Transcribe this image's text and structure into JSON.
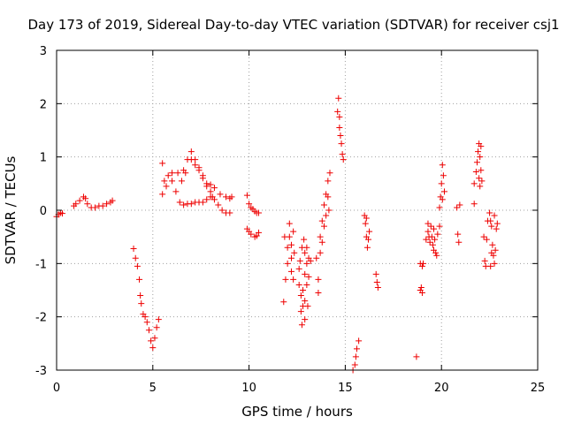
{
  "chart_data": {
    "type": "scatter",
    "title": "Day 173 of 2019, Sidereal Day-to-day VTEC variation (SDTVAR) for receiver csj1",
    "xlabel": "GPS time / hours",
    "ylabel": "SDTVAR / TECUs",
    "xlim": [
      0,
      25
    ],
    "ylim": [
      -3,
      3
    ],
    "xticks": [
      "0",
      "5",
      "10",
      "15",
      "20",
      "25"
    ],
    "yticks": [
      "3",
      "2",
      "1",
      "0",
      "-1",
      "-2",
      "-3"
    ],
    "xtick_values": [
      0,
      5,
      10,
      15,
      20,
      25
    ],
    "ytick_values": [
      3,
      2,
      1,
      0,
      -1,
      -2,
      -3
    ],
    "grid": true,
    "marker": "+",
    "color": "#ee0000",
    "segments": [
      {
        "name": "seg-a",
        "points": [
          [
            0.0,
            -0.12
          ],
          [
            0.1,
            -0.08
          ],
          [
            0.2,
            -0.05
          ],
          [
            0.3,
            -0.06
          ]
        ]
      },
      {
        "name": "seg-b",
        "points": [
          [
            0.9,
            0.08
          ],
          [
            1.0,
            0.12
          ],
          [
            1.2,
            0.18
          ],
          [
            1.4,
            0.25
          ],
          [
            1.5,
            0.22
          ],
          [
            1.6,
            0.12
          ],
          [
            1.8,
            0.05
          ],
          [
            2.0,
            0.05
          ],
          [
            2.2,
            0.08
          ],
          [
            2.4,
            0.08
          ],
          [
            2.6,
            0.12
          ],
          [
            2.8,
            0.15
          ],
          [
            2.9,
            0.18
          ]
        ]
      },
      {
        "name": "seg-c",
        "points": [
          [
            4.0,
            -0.72
          ],
          [
            4.1,
            -0.9
          ],
          [
            4.2,
            -1.05
          ],
          [
            4.3,
            -1.3
          ],
          [
            4.35,
            -1.6
          ],
          [
            4.4,
            -1.75
          ],
          [
            4.5,
            -1.95
          ],
          [
            4.6,
            -2.0
          ],
          [
            4.7,
            -2.1
          ],
          [
            4.8,
            -2.25
          ],
          [
            4.9,
            -2.45
          ],
          [
            5.0,
            -2.58
          ],
          [
            5.1,
            -2.4
          ],
          [
            5.2,
            -2.2
          ],
          [
            5.3,
            -2.05
          ]
        ]
      },
      {
        "name": "seg-d",
        "points": [
          [
            5.5,
            0.88
          ],
          [
            5.6,
            0.55
          ],
          [
            5.8,
            0.65
          ],
          [
            6.0,
            0.7
          ],
          [
            6.3,
            0.7
          ],
          [
            6.6,
            0.75
          ],
          [
            6.8,
            0.95
          ],
          [
            7.0,
            1.1
          ],
          [
            7.2,
            0.95
          ],
          [
            7.4,
            0.8
          ],
          [
            7.6,
            0.65
          ],
          [
            7.8,
            0.5
          ],
          [
            8.0,
            0.48
          ],
          [
            8.2,
            0.42
          ],
          [
            8.5,
            0.3
          ],
          [
            8.8,
            0.25
          ],
          [
            9.0,
            0.22
          ],
          [
            9.1,
            0.25
          ]
        ]
      },
      {
        "name": "seg-e",
        "points": [
          [
            5.5,
            0.3
          ],
          [
            5.7,
            0.45
          ],
          [
            6.0,
            0.55
          ],
          [
            6.2,
            0.35
          ],
          [
            6.4,
            0.15
          ],
          [
            6.6,
            0.1
          ],
          [
            6.8,
            0.12
          ],
          [
            7.0,
            0.12
          ],
          [
            7.2,
            0.15
          ],
          [
            7.4,
            0.15
          ],
          [
            7.6,
            0.15
          ],
          [
            7.8,
            0.2
          ],
          [
            8.0,
            0.25
          ],
          [
            8.1,
            0.25
          ]
        ]
      },
      {
        "name": "seg-f",
        "points": [
          [
            6.5,
            0.55
          ],
          [
            6.7,
            0.7
          ],
          [
            7.0,
            0.95
          ],
          [
            7.2,
            0.85
          ],
          [
            7.4,
            0.75
          ],
          [
            7.6,
            0.6
          ],
          [
            7.8,
            0.45
          ],
          [
            8.0,
            0.35
          ],
          [
            8.2,
            0.2
          ],
          [
            8.4,
            0.1
          ],
          [
            8.6,
            0.0
          ],
          [
            8.8,
            -0.05
          ],
          [
            9.0,
            -0.05
          ]
        ]
      },
      {
        "name": "seg-g",
        "points": [
          [
            9.9,
            0.28
          ],
          [
            10.0,
            0.12
          ],
          [
            10.1,
            0.05
          ],
          [
            10.2,
            0.02
          ],
          [
            10.3,
            -0.02
          ],
          [
            10.4,
            -0.05
          ],
          [
            10.5,
            -0.05
          ]
        ]
      },
      {
        "name": "seg-h",
        "points": [
          [
            9.9,
            -0.35
          ],
          [
            10.0,
            -0.4
          ],
          [
            10.1,
            -0.45
          ],
          [
            10.3,
            -0.5
          ],
          [
            10.4,
            -0.48
          ],
          [
            10.5,
            -0.42
          ]
        ]
      },
      {
        "name": "seg-i",
        "points": [
          [
            11.8,
            -1.72
          ],
          [
            11.85,
            -0.5
          ],
          [
            11.9,
            -1.3
          ],
          [
            12.0,
            -1.0
          ],
          [
            12.0,
            -0.7
          ],
          [
            12.1,
            -0.25
          ],
          [
            12.1,
            -0.5
          ],
          [
            12.2,
            -0.65
          ],
          [
            12.2,
            -0.9
          ],
          [
            12.2,
            -1.15
          ],
          [
            12.3,
            -0.4
          ],
          [
            12.3,
            -1.3
          ],
          [
            12.35,
            -0.8
          ]
        ]
      },
      {
        "name": "seg-j",
        "points": [
          [
            12.6,
            -1.1
          ],
          [
            12.6,
            -1.4
          ],
          [
            12.7,
            -1.6
          ],
          [
            12.7,
            -1.9
          ],
          [
            12.75,
            -2.15
          ],
          [
            12.8,
            -1.8
          ],
          [
            12.8,
            -1.5
          ],
          [
            12.9,
            -0.8
          ],
          [
            12.9,
            -1.2
          ],
          [
            12.9,
            -1.7
          ],
          [
            12.9,
            -2.05
          ],
          [
            13.0,
            -1.4
          ],
          [
            13.0,
            -1.0
          ],
          [
            13.0,
            -0.7
          ],
          [
            13.05,
            -1.8
          ],
          [
            13.1,
            -1.25
          ],
          [
            13.1,
            -0.9
          ],
          [
            13.2,
            -0.95
          ],
          [
            12.85,
            -0.55
          ],
          [
            12.65,
            -0.95
          ],
          [
            12.75,
            -0.7
          ]
        ]
      },
      {
        "name": "seg-k",
        "points": [
          [
            13.5,
            -0.9
          ],
          [
            13.6,
            -1.3
          ],
          [
            13.6,
            -1.55
          ],
          [
            13.7,
            -0.8
          ],
          [
            13.7,
            -0.5
          ],
          [
            13.8,
            -0.2
          ],
          [
            13.8,
            -0.6
          ],
          [
            13.9,
            0.1
          ],
          [
            13.9,
            -0.3
          ],
          [
            14.0,
            0.3
          ],
          [
            14.0,
            -0.1
          ],
          [
            14.1,
            0.55
          ],
          [
            14.1,
            0.25
          ],
          [
            14.2,
            0.7
          ],
          [
            14.15,
            0.0
          ]
        ]
      },
      {
        "name": "seg-l",
        "points": [
          [
            14.6,
            1.85
          ],
          [
            14.65,
            2.1
          ],
          [
            14.7,
            1.75
          ],
          [
            14.7,
            1.55
          ],
          [
            14.75,
            1.4
          ],
          [
            14.8,
            1.25
          ],
          [
            14.85,
            1.05
          ],
          [
            14.9,
            0.95
          ]
        ]
      },
      {
        "name": "seg-m",
        "points": [
          [
            15.4,
            -3.0
          ],
          [
            15.5,
            -2.9
          ],
          [
            15.55,
            -2.75
          ],
          [
            15.6,
            -2.6
          ],
          [
            15.7,
            -2.45
          ]
        ]
      },
      {
        "name": "seg-n",
        "points": [
          [
            16.0,
            -0.1
          ],
          [
            16.05,
            -0.25
          ],
          [
            16.1,
            -0.5
          ],
          [
            16.15,
            -0.7
          ],
          [
            16.2,
            -0.55
          ],
          [
            16.25,
            -0.4
          ],
          [
            16.1,
            -0.15
          ]
        ]
      },
      {
        "name": "seg-o",
        "points": [
          [
            16.6,
            -1.2
          ],
          [
            16.65,
            -1.35
          ],
          [
            16.7,
            -1.45
          ]
        ]
      },
      {
        "name": "seg-p",
        "points": [
          [
            18.7,
            -2.75
          ]
        ]
      },
      {
        "name": "seg-q",
        "points": [
          [
            18.9,
            -1.0
          ],
          [
            19.0,
            -1.05
          ],
          [
            18.95,
            -1.45
          ],
          [
            19.0,
            -1.55
          ],
          [
            18.9,
            -1.5
          ],
          [
            19.05,
            -1.0
          ]
        ]
      },
      {
        "name": "seg-r",
        "points": [
          [
            19.2,
            -0.55
          ],
          [
            19.3,
            -0.4
          ],
          [
            19.35,
            -0.5
          ],
          [
            19.4,
            -0.6
          ],
          [
            19.45,
            -0.3
          ],
          [
            19.5,
            -0.5
          ],
          [
            19.55,
            -0.65
          ],
          [
            19.6,
            -0.75
          ],
          [
            19.65,
            -0.55
          ],
          [
            19.7,
            -0.8
          ],
          [
            19.75,
            -0.85
          ],
          [
            19.8,
            -0.45
          ],
          [
            19.3,
            -0.25
          ],
          [
            19.6,
            -0.35
          ]
        ]
      },
      {
        "name": "seg-s",
        "points": [
          [
            19.9,
            0.05
          ],
          [
            19.95,
            0.25
          ],
          [
            20.0,
            0.5
          ],
          [
            20.05,
            0.85
          ],
          [
            20.1,
            0.65
          ],
          [
            20.15,
            0.35
          ],
          [
            20.05,
            0.2
          ],
          [
            19.9,
            -0.3
          ]
        ]
      },
      {
        "name": "seg-t",
        "points": [
          [
            20.8,
            0.05
          ],
          [
            20.85,
            -0.45
          ],
          [
            20.9,
            -0.6
          ],
          [
            20.95,
            0.1
          ]
        ]
      },
      {
        "name": "seg-u",
        "points": [
          [
            21.7,
            0.12
          ],
          [
            21.7,
            0.5
          ],
          [
            21.8,
            0.72
          ],
          [
            21.85,
            0.9
          ],
          [
            21.9,
            1.1
          ],
          [
            21.95,
            1.25
          ],
          [
            22.0,
            1.0
          ],
          [
            22.05,
            0.75
          ],
          [
            22.1,
            0.55
          ],
          [
            22.0,
            0.45
          ],
          [
            21.95,
            0.6
          ],
          [
            22.05,
            1.2
          ]
        ]
      },
      {
        "name": "seg-v",
        "points": [
          [
            22.2,
            -0.5
          ],
          [
            22.25,
            -0.95
          ],
          [
            22.3,
            -1.05
          ],
          [
            22.35,
            -0.55
          ],
          [
            22.4,
            -0.2
          ]
        ]
      },
      {
        "name": "seg-w",
        "points": [
          [
            22.5,
            -0.05
          ],
          [
            22.55,
            -0.2
          ],
          [
            22.6,
            -0.3
          ],
          [
            22.65,
            -0.65
          ],
          [
            22.7,
            -0.85
          ],
          [
            22.75,
            -1.0
          ],
          [
            22.8,
            -0.75
          ],
          [
            22.85,
            -0.35
          ],
          [
            22.9,
            -0.25
          ],
          [
            22.6,
            -0.8
          ],
          [
            22.55,
            -1.05
          ],
          [
            22.75,
            -0.1
          ]
        ]
      }
    ]
  }
}
